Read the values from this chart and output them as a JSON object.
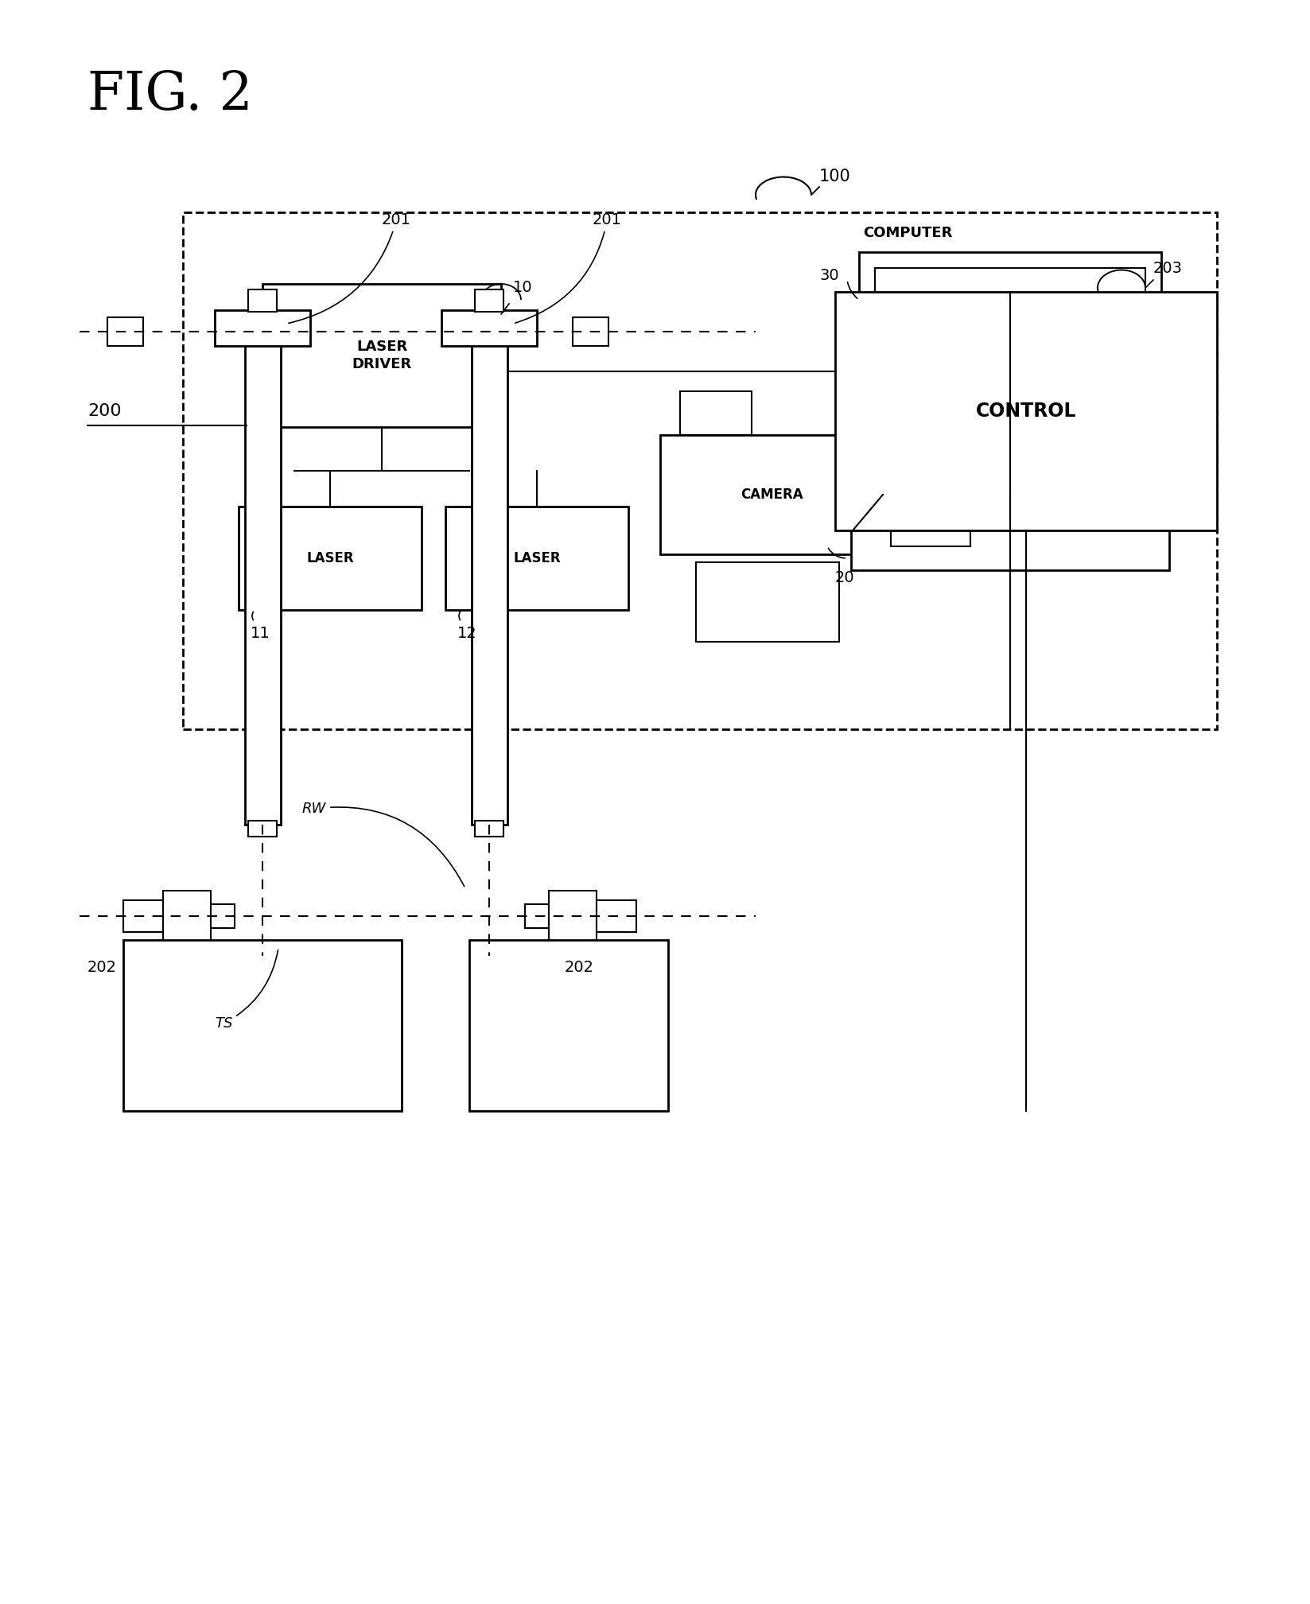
{
  "title": "FIG. 2",
  "bg_color": "#ffffff",
  "fig_width": 16.47,
  "fig_height": 20.17,
  "labels": {
    "laser_driver": "LASER\nDRIVER",
    "laser1": "LASER",
    "laser2": "LASER",
    "camera": "CAMERA",
    "computer": "COMPUTER",
    "control": "CONTROL",
    "label_10": "10",
    "label_11": "11",
    "label_12": "12",
    "label_20": "20",
    "label_30": "30",
    "label_100": "100",
    "label_200": "200",
    "label_201a": "201",
    "label_201b": "201",
    "label_202a": "202",
    "label_202b": "202",
    "label_203": "203",
    "label_rw": "RW",
    "label_ts": "TS"
  }
}
